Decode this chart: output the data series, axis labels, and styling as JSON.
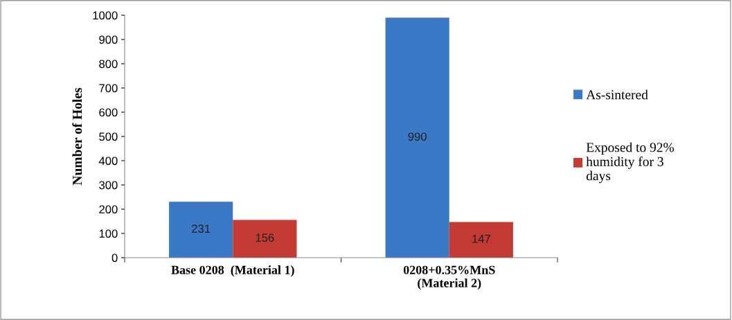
{
  "chart_data": {
    "type": "bar",
    "ylabel": "Number of Holes",
    "categories": [
      "Base 0208  (Material 1)",
      "0208+0.35%MnS\n(Material 2)"
    ],
    "series": [
      {
        "name": "As-sintered",
        "color": "#3b78c6",
        "values": [
          231,
          990
        ]
      },
      {
        "name": "Exposed to 92%\nhumidity for 3\ndays",
        "color": "#c43a34",
        "values": [
          156,
          147
        ]
      }
    ],
    "ylim": [
      0,
      1000
    ],
    "yticks": [
      0,
      100,
      200,
      300,
      400,
      500,
      600,
      700,
      800,
      900,
      1000
    ],
    "data_labels": true,
    "grid": false,
    "legend": "right"
  }
}
